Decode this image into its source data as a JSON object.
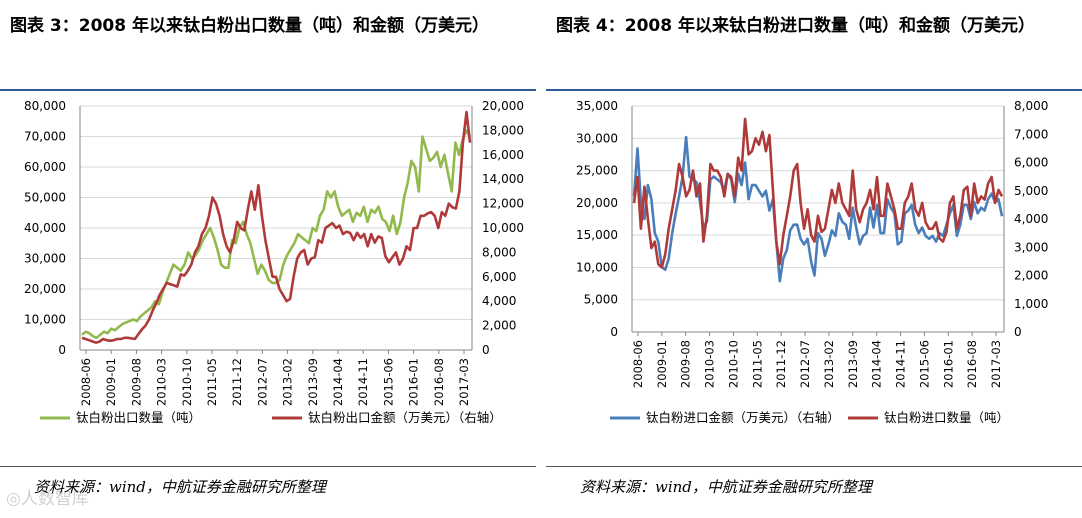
{
  "watermark": "◎人数智库",
  "colors": {
    "green": "#92b94c",
    "red": "#b03a3a",
    "blue": "#4a7ebb",
    "rule": "#2e5b9a",
    "grid": "#d9d9d9",
    "axis": "#868686"
  },
  "chart_data": [
    {
      "type": "line",
      "title": "图表 3：2008 年以来钛白粉出口数量（吨）和金额（万美元）",
      "source": "资料来源：wind，中航证券金融研究所整理",
      "x_labels": [
        "2008-06",
        "2009-01",
        "2009-08",
        "2010-03",
        "2010-10",
        "2011-05",
        "2011-12",
        "2012-07",
        "2013-02",
        "2013-09",
        "2014-04",
        "2014-11",
        "2015-06",
        "2016-01",
        "2016-08",
        "2017-03"
      ],
      "left_axis": {
        "ylim": [
          0,
          80000
        ],
        "ticks": [
          "0",
          "10,000",
          "20,000",
          "30,000",
          "40,000",
          "50,000",
          "60,000",
          "70,000",
          "80,000"
        ]
      },
      "right_axis": {
        "ylim": [
          0,
          20000
        ],
        "ticks": [
          "0",
          "2,000",
          "4,000",
          "6,000",
          "8,000",
          "10,000",
          "12,000",
          "14,000",
          "16,000",
          "18,000",
          "20,000"
        ]
      },
      "series": [
        {
          "name": "钛白粉出口数量（吨）",
          "axis": "left",
          "color": "#92b94c",
          "values": [
            5000,
            6000,
            5500,
            4500,
            4000,
            5000,
            6000,
            5500,
            7000,
            6500,
            7500,
            8500,
            9000,
            9500,
            10000,
            9500,
            11000,
            12000,
            13000,
            14000,
            16000,
            15000,
            19000,
            22000,
            25000,
            28000,
            27000,
            26000,
            28000,
            32000,
            30000,
            31000,
            33000,
            36000,
            38000,
            40000,
            37000,
            33000,
            28000,
            27000,
            27000,
            36000,
            35000,
            40000,
            42000,
            38000,
            35000,
            30000,
            25000,
            28000,
            26000,
            23000,
            22000,
            22000,
            23000,
            28000,
            31000,
            33000,
            35000,
            38000,
            37000,
            36000,
            35000,
            40000,
            39000,
            44000,
            46000,
            52000,
            50000,
            52000,
            47000,
            44000,
            45000,
            46000,
            42000,
            45000,
            44000,
            47000,
            42000,
            46000,
            45000,
            47000,
            43000,
            42000,
            39000,
            44000,
            38000,
            42000,
            50000,
            55000,
            62000,
            60000,
            52000,
            70000,
            66000,
            62000,
            63000,
            65000,
            60000,
            64000,
            58000,
            52000,
            68000,
            64000,
            69000,
            72000,
            70000
          ]
        },
        {
          "name": "钛白粉出口金额（万美元）（右轴）",
          "axis": "right",
          "color": "#b03a3a",
          "values": [
            1000,
            900,
            800,
            700,
            600,
            700,
            900,
            800,
            750,
            800,
            900,
            900,
            1000,
            1000,
            950,
            900,
            1300,
            1700,
            2000,
            2500,
            3200,
            3800,
            4500,
            5000,
            5500,
            5400,
            5300,
            5200,
            6200,
            6100,
            6500,
            7000,
            8000,
            8500,
            9500,
            10000,
            11000,
            12500,
            12000,
            11000,
            9500,
            8500,
            8000,
            9000,
            10500,
            10000,
            9800,
            11500,
            13000,
            11500,
            13500,
            11000,
            9000,
            7500,
            6000,
            6000,
            5000,
            4500,
            4000,
            4200,
            6000,
            7500,
            8000,
            8200,
            7000,
            7500,
            7600,
            9000,
            8800,
            10000,
            10200,
            10400,
            10000,
            10200,
            9500,
            9700,
            9600,
            9000,
            9600,
            9200,
            9500,
            8500,
            9500,
            8800,
            9300,
            9200,
            7700,
            7200,
            7600,
            8000,
            7000,
            7500,
            8500,
            8200,
            10000,
            10000,
            11000,
            11000,
            11200,
            11300,
            11000,
            10000,
            11300,
            11000,
            12000,
            11700,
            11600,
            13000,
            17000,
            19500,
            17000
          ],
          "clip_end": 17500
        }
      ]
    },
    {
      "type": "line",
      "title": "图表 4：2008 年以来钛白粉进口数量（吨）和金额（万美元）",
      "source": "资料来源：wind，中航证券金融研究所整理",
      "x_labels": [
        "2008-06",
        "2009-01",
        "2009-08",
        "2010-03",
        "2010-10",
        "2011-05",
        "2011-12",
        "2012-07",
        "2013-02",
        "2013-09",
        "2014-04",
        "2014-11",
        "2015-06",
        "2016-01",
        "2016-08",
        "2017-03"
      ],
      "left_axis": {
        "ylim": [
          0,
          35000
        ],
        "ticks": [
          "0",
          "5,000",
          "10,000",
          "15,000",
          "20,000",
          "25,000",
          "30,000",
          "35,000"
        ]
      },
      "right_axis": {
        "ylim": [
          0,
          8000
        ],
        "ticks": [
          "0",
          "1,000",
          "2,000",
          "3,000",
          "4,000",
          "5,000",
          "6,000",
          "7,000",
          "8,000"
        ]
      },
      "series": [
        {
          "name": "钛白粉进口金额（万美元）（右轴）",
          "axis": "right",
          "color": "#4a7ebb",
          "values": [
            4800,
            6500,
            4600,
            4000,
            5200,
            4700,
            3500,
            3200,
            2300,
            2200,
            2600,
            3500,
            4200,
            4800,
            5500,
            6900,
            5500,
            5400,
            5300,
            4600,
            3700,
            3900,
            5400,
            5500,
            5400,
            5300,
            5000,
            5600,
            5400,
            4600,
            5600,
            5200,
            6000,
            4700,
            5200,
            5200,
            5000,
            4800,
            5000,
            4300,
            4700,
            3200,
            1800,
            2600,
            2900,
            3600,
            3800,
            3800,
            3300,
            3100,
            3300,
            2500,
            2000,
            3500,
            3300,
            2700,
            3100,
            3600,
            3400,
            4200,
            3900,
            3800,
            3300,
            4400,
            3700,
            3100,
            3400,
            3500,
            4400,
            3700,
            4500,
            3500,
            3500,
            4700,
            4400,
            4200,
            3100,
            3200,
            4200,
            4300,
            4500,
            3800,
            3500,
            3700,
            3400,
            3300,
            3400,
            3200,
            3500,
            3400,
            3800,
            4200,
            4500,
            3400,
            3800,
            4500,
            4500,
            4000,
            4600,
            4200,
            4400,
            4300,
            4700,
            4900,
            4600,
            4700,
            4100
          ]
        },
        {
          "name": "钛白粉进口数量（吨）",
          "axis": "left",
          "color": "#b03a3a",
          "values": [
            20000,
            24000,
            16000,
            22500,
            17500,
            13000,
            14000,
            10500,
            10000,
            12000,
            16000,
            19000,
            22000,
            26000,
            24000,
            21000,
            22000,
            25000,
            21000,
            23000,
            14000,
            18000,
            26000,
            25000,
            25000,
            24000,
            21000,
            24500,
            24000,
            21000,
            27000,
            25000,
            33000,
            27500,
            28000,
            30000,
            29000,
            31000,
            28000,
            30500,
            22000,
            14000,
            10500,
            15000,
            18000,
            21000,
            25000,
            26000,
            20000,
            16000,
            19000,
            15000,
            14000,
            18000,
            15500,
            16000,
            19000,
            22000,
            20000,
            23000,
            20000,
            19000,
            18000,
            25000,
            19000,
            17000,
            19000,
            20000,
            22000,
            19000,
            24000,
            18000,
            18000,
            23000,
            21000,
            19000,
            16000,
            16000,
            20000,
            21000,
            23000,
            19000,
            18000,
            20000,
            17000,
            16000,
            16000,
            17000,
            14500,
            14000,
            15500,
            20000,
            21000,
            16000,
            18000,
            22000,
            22500,
            18000,
            23000,
            20000,
            21000,
            20500,
            23000,
            24000,
            20000,
            22000,
            21000
          ]
        }
      ]
    }
  ]
}
